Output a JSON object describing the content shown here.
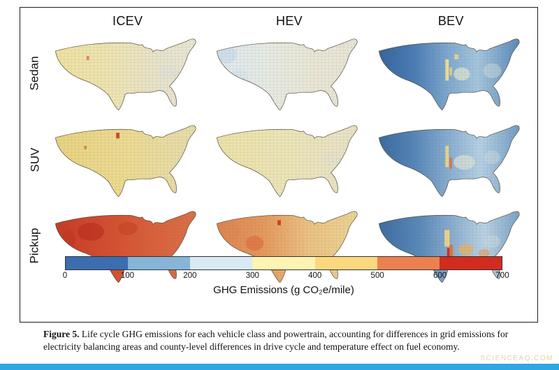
{
  "figure": {
    "columns": [
      "ICEV",
      "HEV",
      "BEV"
    ],
    "rows": [
      "Sedan",
      "SUV",
      "Pickup"
    ]
  },
  "colorbar": {
    "ticks": [
      "0",
      "100",
      "200",
      "300",
      "400",
      "500",
      "600",
      "700"
    ],
    "segments": [
      "#3b6db1",
      "#86b5d8",
      "#d8eaf3",
      "#fdf3b3",
      "#fcd97f",
      "#ec8150",
      "#d22b20"
    ],
    "label": "GHG Emissions (g CO₂e/mile)"
  },
  "caption": {
    "label": "Figure 5.",
    "text": " Life cycle GHG emissions for each vehicle class and powertrain, accounting for differences in grid emissions for electricity balancing areas and county-level differences in drive cycle and temperature effect on fuel economy."
  },
  "watermark": "SCIENCEAQ.COM",
  "colors": {
    "footer_bar": "#2fa7e0",
    "watermark": "#eccfa4",
    "map_outline": "#55503f"
  },
  "chart_data": {
    "type": "heatmap",
    "subtype": "choropleth-small-multiples",
    "title": "Life cycle GHG emissions by vehicle class and powertrain (US counties)",
    "columns": [
      "ICEV",
      "HEV",
      "BEV"
    ],
    "rows": [
      "Sedan",
      "SUV",
      "Pickup"
    ],
    "value_label": "GHG Emissions (g CO₂e/mile)",
    "value_range": [
      0,
      700
    ],
    "colorbar_ticks": [
      0,
      100,
      200,
      300,
      400,
      500,
      600,
      700
    ],
    "colorbar_colors": [
      "#3b6db1",
      "#86b5d8",
      "#d8eaf3",
      "#fdf3b3",
      "#fcd97f",
      "#ec8150",
      "#d22b20"
    ],
    "legend_position": "bottom colorbar",
    "cells": [
      {
        "row": "Sedan",
        "col": "ICEV",
        "approx_mean": 420,
        "approx_range": [
          350,
          500
        ],
        "palette": "pale yellow, grayer toward east"
      },
      {
        "row": "Sedan",
        "col": "HEV",
        "approx_mean": 310,
        "approx_range": [
          250,
          380
        ],
        "palette": "very pale blue-gray to cream"
      },
      {
        "row": "Sedan",
        "col": "BEV",
        "approx_mean": 180,
        "approx_range": [
          50,
          400
        ],
        "palette": "blues with scattered yellow high-grid-emission counties"
      },
      {
        "row": "SUV",
        "col": "ICEV",
        "approx_mean": 480,
        "approx_range": [
          400,
          600
        ],
        "palette": "yellow with small red specks"
      },
      {
        "row": "SUV",
        "col": "HEV",
        "approx_mean": 400,
        "approx_range": [
          330,
          470
        ],
        "palette": "pale yellow"
      },
      {
        "row": "SUV",
        "col": "BEV",
        "approx_mean": 220,
        "approx_range": [
          60,
          500
        ],
        "palette": "blues with pale center and orange slivers"
      },
      {
        "row": "Pickup",
        "col": "ICEV",
        "approx_mean": 630,
        "approx_range": [
          550,
          700
        ],
        "palette": "red across nearly all counties"
      },
      {
        "row": "Pickup",
        "col": "HEV",
        "approx_mean": 520,
        "approx_range": [
          420,
          620
        ],
        "palette": "orange in west grading to yellow in east"
      },
      {
        "row": "Pickup",
        "col": "BEV",
        "approx_mean": 260,
        "approx_range": [
          80,
          600
        ],
        "palette": "blues with yellow-orange-red central patches"
      }
    ]
  }
}
